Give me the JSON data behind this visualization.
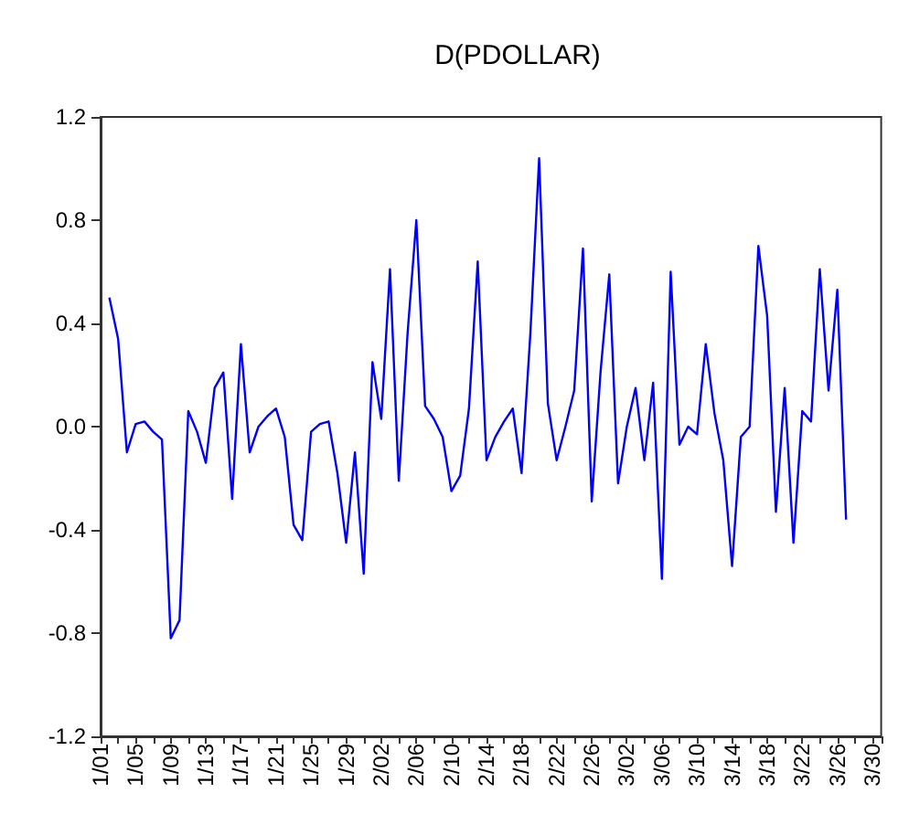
{
  "chart_data": {
    "type": "line",
    "title": "D(PDOLLAR)",
    "categories": [
      "1/01",
      null,
      null,
      null,
      "1/05",
      null,
      null,
      null,
      "1/09",
      null,
      null,
      null,
      "1/13",
      null,
      null,
      null,
      "1/17",
      null,
      null,
      null,
      "1/21",
      null,
      null,
      null,
      "1/25",
      null,
      null,
      null,
      "1/29",
      null,
      null,
      null,
      "2/02",
      null,
      null,
      null,
      "2/06",
      null,
      null,
      null,
      "2/10",
      null,
      null,
      null,
      "2/14",
      null,
      null,
      null,
      "2/18",
      null,
      null,
      null,
      "2/22",
      null,
      null,
      null,
      "2/26",
      null,
      null,
      null,
      "3/02",
      null,
      null,
      null,
      "3/06",
      null,
      null,
      null,
      "3/10",
      null,
      null,
      null,
      "3/14",
      null,
      null,
      null,
      "3/18",
      null,
      null,
      null,
      "3/22",
      null,
      null,
      null,
      "3/26",
      null,
      null,
      null,
      "3/30",
      null
    ],
    "series": [
      {
        "color": "#0000ff",
        "values": [
          null,
          0.5,
          0.34,
          -0.1,
          0.01,
          0.02,
          -0.02,
          -0.05,
          -0.82,
          -0.75,
          0.06,
          -0.02,
          -0.14,
          0.15,
          0.21,
          -0.28,
          0.32,
          -0.1,
          0.0,
          0.04,
          0.07,
          -0.04,
          -0.38,
          -0.44,
          -0.02,
          0.01,
          0.02,
          -0.18,
          -0.45,
          -0.1,
          -0.57,
          0.25,
          0.03,
          0.61,
          -0.21,
          0.36,
          0.8,
          0.08,
          0.03,
          -0.04,
          -0.25,
          -0.19,
          0.07,
          0.64,
          -0.13,
          -0.04,
          0.02,
          0.07,
          -0.18,
          0.36,
          1.04,
          0.09,
          -0.13,
          0.0,
          0.14,
          0.69,
          -0.29,
          0.21,
          0.59,
          -0.22,
          0.0,
          0.15,
          -0.13,
          0.17,
          -0.59,
          0.6,
          -0.07,
          0.0,
          -0.03,
          0.32,
          0.05,
          -0.13,
          -0.54,
          -0.04,
          0.0,
          0.7,
          0.43,
          -0.33,
          0.15,
          -0.45,
          0.06,
          0.02,
          0.61,
          0.14,
          0.53,
          -0.36,
          null,
          null,
          null,
          null
        ]
      }
    ],
    "ylim": [
      -1.2,
      1.2
    ],
    "yticks": [
      -1.2,
      -0.8,
      -0.4,
      {
        "value": 0,
        "label": "0.0"
      },
      0.4,
      0.8,
      1.2
    ],
    "grid": false,
    "marker": "none",
    "line_style": "solid"
  }
}
